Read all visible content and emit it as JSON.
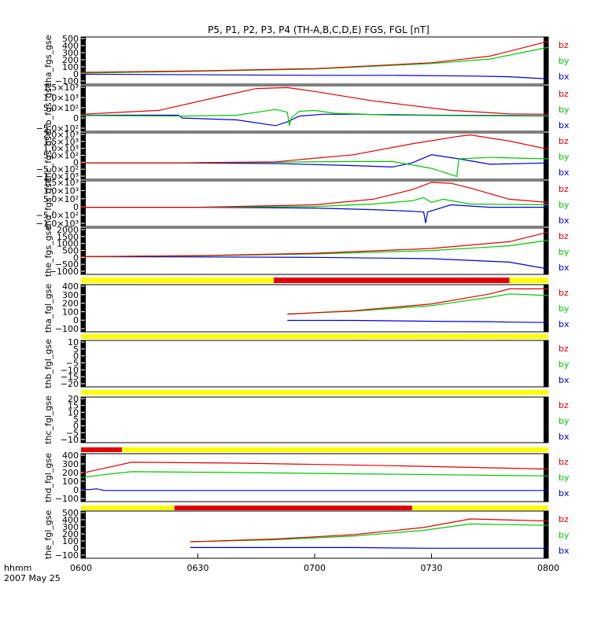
{
  "title": "P5, P1, P2, P3, P4 (TH-A,B,C,D,E) FGS, FGL [nT]",
  "footer": {
    "time_label": "hhmm",
    "date_label": "2007 May 25"
  },
  "x_ticks": [
    "0600",
    "0630",
    "0700",
    "0730",
    "0800"
  ],
  "colors": {
    "bz": "#e00000",
    "by": "#00c800",
    "bx": "#0000d0",
    "bar_yellow": "#ffff00",
    "bar_red": "#e00000",
    "frame": "#000000"
  },
  "chart_data": [
    {
      "id": "p1",
      "type": "line",
      "ylabel": "tha_fgs_gse",
      "ylim": [
        -120,
        520
      ],
      "ticks": [
        "500",
        "400",
        "300",
        "200",
        "100",
        "0",
        "−100"
      ],
      "legend": [
        "bz",
        "by",
        "bx"
      ],
      "series": [
        {
          "name": "bz",
          "x": [
            0,
            30,
            60,
            90,
            105,
            120
          ],
          "y": [
            40,
            60,
            90,
            170,
            260,
            460
          ]
        },
        {
          "name": "by",
          "x": [
            0,
            30,
            60,
            90,
            105,
            120
          ],
          "y": [
            30,
            55,
            85,
            160,
            220,
            380
          ]
        },
        {
          "name": "bx",
          "x": [
            0,
            20,
            40,
            60,
            80,
            100,
            110,
            120
          ],
          "y": [
            15,
            10,
            5,
            0,
            0,
            -10,
            -20,
            -50
          ]
        }
      ]
    },
    {
      "id": "p2",
      "type": "line",
      "ylabel": "thb_fgs_gse",
      "ylim": [
        -800,
        1600
      ],
      "ticks": [
        "1.5×10³",
        "1.0×10³",
        "5.0×10²",
        "0",
        "−5.0×10²"
      ],
      "legend": [
        "bz",
        "by",
        "bx"
      ],
      "series": [
        {
          "name": "bz",
          "x": [
            0,
            20,
            35,
            45,
            53,
            60,
            75,
            95,
            110,
            120
          ],
          "y": [
            100,
            300,
            1000,
            1450,
            1500,
            1300,
            800,
            300,
            120,
            100
          ]
        },
        {
          "name": "by",
          "x": [
            0,
            25,
            40,
            50,
            53,
            53.5,
            54,
            56,
            60,
            65,
            80,
            100,
            120
          ],
          "y": [
            30,
            0,
            50,
            350,
            200,
            -500,
            -100,
            250,
            300,
            150,
            50,
            20,
            0
          ]
        },
        {
          "name": "bx",
          "x": [
            0,
            25,
            26,
            40,
            50,
            53,
            56,
            62,
            70,
            90,
            110,
            120
          ],
          "y": [
            50,
            50,
            -100,
            -200,
            -500,
            -300,
            0,
            100,
            100,
            50,
            30,
            20
          ]
        }
      ]
    },
    {
      "id": "p3",
      "type": "line",
      "ylabel": "thc_fgs_gse",
      "ylim": [
        -1200,
        2200
      ],
      "ticks": [
        "2.0×10³",
        "1.5×10³",
        "1.0×10³",
        "5.0×10²",
        "0",
        "−5.0×10²",
        "−1.0×10³"
      ],
      "legend": [
        "bz",
        "by",
        "bx"
      ],
      "series": [
        {
          "name": "bz",
          "x": [
            0,
            25,
            50,
            70,
            85,
            97,
            100,
            110,
            120
          ],
          "y": [
            0,
            0,
            80,
            600,
            1400,
            1950,
            2050,
            1600,
            1000
          ]
        },
        {
          "name": "by",
          "x": [
            0,
            25,
            50,
            70,
            80,
            90,
            96.5,
            97,
            105,
            120
          ],
          "y": [
            0,
            0,
            50,
            100,
            100,
            -400,
            -1000,
            300,
            400,
            300
          ]
        },
        {
          "name": "bx",
          "x": [
            0,
            25,
            50,
            70,
            80,
            85,
            90,
            97,
            105,
            120
          ],
          "y": [
            0,
            0,
            -50,
            -200,
            -300,
            0,
            600,
            300,
            -100,
            0
          ]
        }
      ]
    },
    {
      "id": "p4",
      "type": "line",
      "ylabel": "thd_fgs_gse",
      "ylim": [
        -1200,
        1650
      ],
      "ticks": [
        "1.5×10³",
        "1.0×10³",
        "5.0×10²",
        "0",
        "−5.0×10²",
        "−1.0×10³"
      ],
      "legend": [
        "bz",
        "by",
        "bx"
      ],
      "series": [
        {
          "name": "bz",
          "x": [
            0,
            30,
            60,
            75,
            85,
            90,
            95,
            100,
            110,
            120
          ],
          "y": [
            0,
            0,
            150,
            500,
            1100,
            1550,
            1500,
            1200,
            500,
            300
          ]
        },
        {
          "name": "by",
          "x": [
            0,
            30,
            60,
            75,
            85,
            88,
            90,
            93,
            100,
            120
          ],
          "y": [
            0,
            0,
            50,
            200,
            400,
            600,
            300,
            500,
            200,
            150
          ]
        },
        {
          "name": "bx",
          "x": [
            0,
            30,
            60,
            75,
            85,
            88,
            88.5,
            89,
            95,
            105,
            120
          ],
          "y": [
            0,
            0,
            -50,
            -150,
            -250,
            -300,
            -1000,
            -300,
            150,
            0,
            0
          ]
        }
      ]
    },
    {
      "id": "p5",
      "type": "line",
      "ylabel": "the_fgs_gse",
      "ylim": [
        -1300,
        2100
      ],
      "ticks": [
        "2000",
        "1500",
        "1000",
        "500",
        "0",
        "−500",
        "−1000"
      ],
      "legend": [
        "bz",
        "by",
        "bx"
      ],
      "series": [
        {
          "name": "bz",
          "x": [
            0,
            30,
            60,
            90,
            110,
            120
          ],
          "y": [
            0,
            80,
            250,
            600,
            1100,
            1800
          ]
        },
        {
          "name": "by",
          "x": [
            0,
            30,
            60,
            90,
            110,
            120
          ],
          "y": [
            0,
            60,
            200,
            450,
            800,
            1200
          ]
        },
        {
          "name": "bx",
          "x": [
            0,
            30,
            60,
            90,
            110,
            120
          ],
          "y": [
            0,
            -20,
            -50,
            -150,
            -400,
            -900
          ]
        }
      ]
    },
    {
      "id": "p6",
      "type": "line",
      "ylabel": "tha_fgl_gse",
      "ylim": [
        -130,
        430
      ],
      "ticks": [
        "400",
        "300",
        "200",
        "100",
        "0",
        "−100"
      ],
      "legend": [
        "bz",
        "by",
        "bx"
      ],
      "series": [
        {
          "name": "bz",
          "x": [
            53,
            70,
            90,
            105,
            110,
            120
          ],
          "y": [
            80,
            120,
            200,
            320,
            380,
            380
          ]
        },
        {
          "name": "by",
          "x": [
            53,
            70,
            90,
            105,
            110,
            120
          ],
          "y": [
            80,
            115,
            180,
            280,
            320,
            300
          ]
        },
        {
          "name": "bx",
          "x": [
            53,
            70,
            90,
            105,
            110,
            120
          ],
          "y": [
            5,
            5,
            -5,
            -10,
            -15,
            -20
          ]
        }
      ]
    },
    {
      "id": "p7",
      "type": "line",
      "ylabel": "thb_fgl_gse",
      "ylim": [
        -23,
        13
      ],
      "ticks": [
        "10",
        "5",
        "0",
        "−5",
        "−10",
        "−15",
        "−20"
      ],
      "legend": [
        "bz",
        "by",
        "bx"
      ],
      "series": []
    },
    {
      "id": "p8",
      "type": "line",
      "ylabel": "thc_fgl_gse",
      "ylim": [
        -13,
        23
      ],
      "ticks": [
        "20",
        "15",
        "10",
        "5",
        "0",
        "−5",
        "−10"
      ],
      "legend": [
        "bz",
        "by",
        "bx"
      ],
      "series": []
    },
    {
      "id": "p9",
      "type": "line",
      "ylabel": "thd_fgl_gse",
      "ylim": [
        -130,
        430
      ],
      "ticks": [
        "400",
        "300",
        "200",
        "100",
        "0",
        "−100"
      ],
      "legend": [
        "bz",
        "by",
        "bx"
      ],
      "series": [
        {
          "name": "bz",
          "x": [
            0,
            5,
            13,
            40,
            80,
            120
          ],
          "y": [
            200,
            250,
            330,
            320,
            290,
            250
          ]
        },
        {
          "name": "by",
          "x": [
            0,
            5,
            13,
            40,
            80,
            120
          ],
          "y": [
            150,
            180,
            220,
            210,
            190,
            170
          ]
        },
        {
          "name": "bx",
          "x": [
            0,
            2,
            4,
            6,
            120
          ],
          "y": [
            15,
            10,
            20,
            0,
            0
          ]
        }
      ]
    },
    {
      "id": "p10",
      "type": "line",
      "ylabel": "the_fgl_gse",
      "ylim": [
        -130,
        530
      ],
      "ticks": [
        "500",
        "400",
        "300",
        "200",
        "100",
        "0",
        "−100"
      ],
      "legend": [
        "bz",
        "by",
        "bx"
      ],
      "series": [
        {
          "name": "bz",
          "x": [
            28,
            50,
            70,
            88,
            100,
            120
          ],
          "y": [
            100,
            140,
            200,
            300,
            420,
            390
          ]
        },
        {
          "name": "by",
          "x": [
            28,
            50,
            70,
            88,
            100,
            120
          ],
          "y": [
            100,
            130,
            180,
            260,
            350,
            330
          ]
        },
        {
          "name": "bx",
          "x": [
            28,
            50,
            70,
            88,
            100,
            120
          ],
          "y": [
            20,
            20,
            20,
            10,
            10,
            10
          ]
        }
      ]
    }
  ],
  "mode_bars": [
    {
      "segments": [
        {
          "color": "bar_yellow",
          "x0": 0,
          "x1": 120
        },
        {
          "color": "bar_red",
          "x0": 49.5,
          "x1": 110
        }
      ]
    },
    {
      "segments": [
        {
          "color": "bar_yellow",
          "x0": 0,
          "x1": 120
        }
      ]
    },
    {
      "segments": [
        {
          "color": "bar_yellow",
          "x0": 0,
          "x1": 120
        }
      ]
    },
    {
      "segments": [
        {
          "color": "bar_yellow",
          "x0": 0,
          "x1": 120
        },
        {
          "color": "bar_red",
          "x0": 0,
          "x1": 10.5
        }
      ]
    },
    {
      "segments": [
        {
          "color": "bar_yellow",
          "x0": 0,
          "x1": 120
        },
        {
          "color": "bar_red",
          "x0": 24,
          "x1": 85
        }
      ]
    }
  ]
}
